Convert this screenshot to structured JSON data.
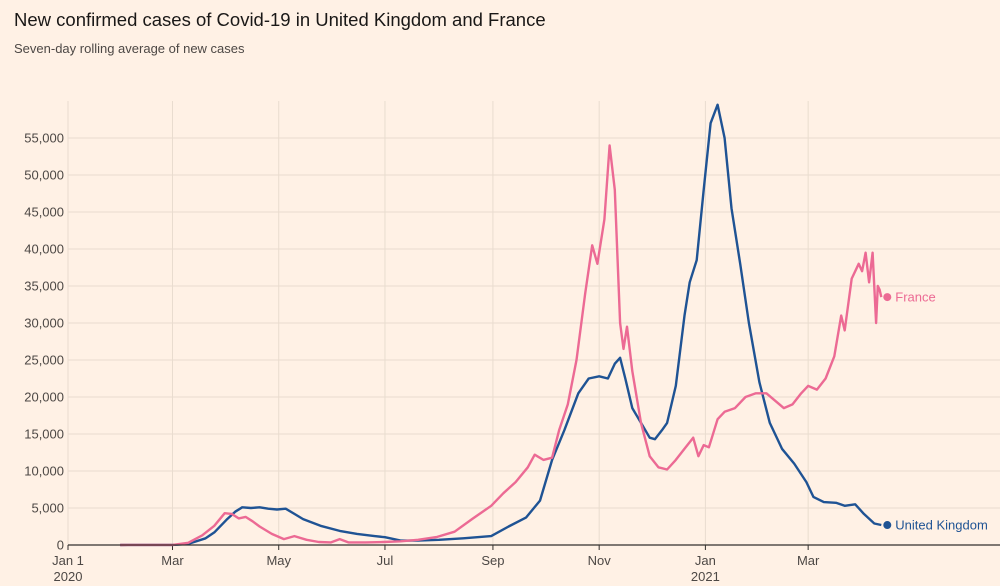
{
  "title": "New confirmed cases of Covid-19 in United Kingdom and France",
  "subtitle": "Seven-day rolling average of new cases",
  "colors": {
    "background": "#fff1e5",
    "grid": "#e9dccf",
    "axis": "#33302e",
    "uk": "#1f5394",
    "france": "#ec6a94"
  },
  "chart_data": {
    "type": "line",
    "x_unit": "date",
    "y_ticks": [
      0,
      5000,
      10000,
      15000,
      20000,
      25000,
      30000,
      35000,
      40000,
      45000,
      50000,
      55000
    ],
    "y_tick_labels": [
      "0",
      "5,000",
      "10,000",
      "15,000",
      "20,000",
      "25,000",
      "30,000",
      "35,000",
      "40,000",
      "45,000",
      "50,000",
      "55,000"
    ],
    "ylim": [
      0,
      60000
    ],
    "xlim": [
      "2020-01-01",
      "2021-04-17"
    ],
    "x_ticks": [
      {
        "date": "2020-01-01",
        "label": "Jan 1",
        "sublabel": "2020"
      },
      {
        "date": "2020-03-01",
        "label": "Mar",
        "sublabel": ""
      },
      {
        "date": "2020-05-01",
        "label": "May",
        "sublabel": ""
      },
      {
        "date": "2020-07-01",
        "label": "Jul",
        "sublabel": ""
      },
      {
        "date": "2020-09-01",
        "label": "Sep",
        "sublabel": ""
      },
      {
        "date": "2020-11-01",
        "label": "Nov",
        "sublabel": ""
      },
      {
        "date": "2021-01-01",
        "label": "Jan",
        "sublabel": "2021"
      },
      {
        "date": "2021-03-01",
        "label": "Mar",
        "sublabel": ""
      }
    ],
    "grid": true,
    "series": [
      {
        "name": "United Kingdom",
        "points": [
          [
            "2020-01-31",
            0
          ],
          [
            "2020-03-01",
            10
          ],
          [
            "2020-03-10",
            150
          ],
          [
            "2020-03-20",
            900
          ],
          [
            "2020-03-25",
            1700
          ],
          [
            "2020-04-01",
            3400
          ],
          [
            "2020-04-06",
            4500
          ],
          [
            "2020-04-10",
            5100
          ],
          [
            "2020-04-15",
            5000
          ],
          [
            "2020-04-20",
            5100
          ],
          [
            "2020-04-25",
            4900
          ],
          [
            "2020-04-30",
            4800
          ],
          [
            "2020-05-05",
            4900
          ],
          [
            "2020-05-10",
            4200
          ],
          [
            "2020-05-15",
            3500
          ],
          [
            "2020-05-25",
            2600
          ],
          [
            "2020-06-05",
            1900
          ],
          [
            "2020-06-15",
            1500
          ],
          [
            "2020-06-25",
            1200
          ],
          [
            "2020-07-01",
            1050
          ],
          [
            "2020-07-10",
            600
          ],
          [
            "2020-07-20",
            600
          ],
          [
            "2020-08-01",
            700
          ],
          [
            "2020-08-15",
            900
          ],
          [
            "2020-08-31",
            1200
          ],
          [
            "2020-09-10",
            2500
          ],
          [
            "2020-09-20",
            3700
          ],
          [
            "2020-09-28",
            6000
          ],
          [
            "2020-10-05",
            11500
          ],
          [
            "2020-10-12",
            15500
          ],
          [
            "2020-10-20",
            20500
          ],
          [
            "2020-10-26",
            22500
          ],
          [
            "2020-11-01",
            22800
          ],
          [
            "2020-11-06",
            22500
          ],
          [
            "2020-11-10",
            24500
          ],
          [
            "2020-11-13",
            25300
          ],
          [
            "2020-11-16",
            22500
          ],
          [
            "2020-11-20",
            18500
          ],
          [
            "2020-11-25",
            16500
          ],
          [
            "2020-11-30",
            14500
          ],
          [
            "2020-12-03",
            14300
          ],
          [
            "2020-12-07",
            15500
          ],
          [
            "2020-12-10",
            16500
          ],
          [
            "2020-12-15",
            21500
          ],
          [
            "2020-12-20",
            31000
          ],
          [
            "2020-12-23",
            35500
          ],
          [
            "2020-12-27",
            38500
          ],
          [
            "2020-12-31",
            48000
          ],
          [
            "2021-01-04",
            57000
          ],
          [
            "2021-01-08",
            59500
          ],
          [
            "2021-01-12",
            55000
          ],
          [
            "2021-01-16",
            45500
          ],
          [
            "2021-01-21",
            38000
          ],
          [
            "2021-01-26",
            30000
          ],
          [
            "2021-02-01",
            22000
          ],
          [
            "2021-02-07",
            16500
          ],
          [
            "2021-02-14",
            13000
          ],
          [
            "2021-02-21",
            11000
          ],
          [
            "2021-02-28",
            8500
          ],
          [
            "2021-03-04",
            6500
          ],
          [
            "2021-03-10",
            5800
          ],
          [
            "2021-03-17",
            5700
          ],
          [
            "2021-03-22",
            5300
          ],
          [
            "2021-03-28",
            5500
          ],
          [
            "2021-04-02",
            4200
          ],
          [
            "2021-04-08",
            2900
          ],
          [
            "2021-04-12",
            2700
          ]
        ]
      },
      {
        "name": "France",
        "points": [
          [
            "2020-01-31",
            0
          ],
          [
            "2020-03-01",
            10
          ],
          [
            "2020-03-10",
            300
          ],
          [
            "2020-03-18",
            1300
          ],
          [
            "2020-03-25",
            2600
          ],
          [
            "2020-03-31",
            4300
          ],
          [
            "2020-04-04",
            4200
          ],
          [
            "2020-04-08",
            3600
          ],
          [
            "2020-04-12",
            3800
          ],
          [
            "2020-04-16",
            3200
          ],
          [
            "2020-04-20",
            2500
          ],
          [
            "2020-04-27",
            1500
          ],
          [
            "2020-05-04",
            800
          ],
          [
            "2020-05-10",
            1200
          ],
          [
            "2020-05-17",
            700
          ],
          [
            "2020-05-24",
            400
          ],
          [
            "2020-05-31",
            350
          ],
          [
            "2020-06-05",
            800
          ],
          [
            "2020-06-10",
            350
          ],
          [
            "2020-06-20",
            350
          ],
          [
            "2020-06-30",
            400
          ],
          [
            "2020-07-10",
            500
          ],
          [
            "2020-07-20",
            700
          ],
          [
            "2020-07-31",
            1100
          ],
          [
            "2020-08-10",
            1800
          ],
          [
            "2020-08-20",
            3500
          ],
          [
            "2020-08-31",
            5300
          ],
          [
            "2020-09-07",
            7000
          ],
          [
            "2020-09-14",
            8500
          ],
          [
            "2020-09-21",
            10500
          ],
          [
            "2020-09-25",
            12200
          ],
          [
            "2020-09-30",
            11500
          ],
          [
            "2020-10-05",
            11800
          ],
          [
            "2020-10-09",
            15500
          ],
          [
            "2020-10-14",
            19000
          ],
          [
            "2020-10-19",
            25000
          ],
          [
            "2020-10-24",
            34000
          ],
          [
            "2020-10-28",
            40500
          ],
          [
            "2020-10-31",
            38000
          ],
          [
            "2020-11-04",
            44000
          ],
          [
            "2020-11-07",
            54000
          ],
          [
            "2020-11-10",
            48000
          ],
          [
            "2020-11-13",
            30000
          ],
          [
            "2020-11-15",
            26500
          ],
          [
            "2020-11-17",
            29500
          ],
          [
            "2020-11-20",
            23500
          ],
          [
            "2020-11-25",
            16500
          ],
          [
            "2020-11-30",
            12000
          ],
          [
            "2020-12-05",
            10500
          ],
          [
            "2020-12-10",
            10200
          ],
          [
            "2020-12-15",
            11500
          ],
          [
            "2020-12-20",
            13000
          ],
          [
            "2020-12-25",
            14500
          ],
          [
            "2020-12-28",
            12000
          ],
          [
            "2020-12-31",
            13500
          ],
          [
            "2021-01-03",
            13200
          ],
          [
            "2021-01-08",
            17000
          ],
          [
            "2021-01-12",
            18000
          ],
          [
            "2021-01-18",
            18500
          ],
          [
            "2021-01-24",
            20000
          ],
          [
            "2021-01-30",
            20500
          ],
          [
            "2021-02-05",
            20500
          ],
          [
            "2021-02-10",
            19500
          ],
          [
            "2021-02-15",
            18500
          ],
          [
            "2021-02-20",
            19000
          ],
          [
            "2021-02-25",
            20500
          ],
          [
            "2021-03-01",
            21500
          ],
          [
            "2021-03-06",
            21000
          ],
          [
            "2021-03-11",
            22500
          ],
          [
            "2021-03-16",
            25500
          ],
          [
            "2021-03-20",
            31000
          ],
          [
            "2021-03-22",
            29000
          ],
          [
            "2021-03-26",
            36000
          ],
          [
            "2021-03-30",
            38000
          ],
          [
            "2021-04-01",
            37000
          ],
          [
            "2021-04-03",
            39500
          ],
          [
            "2021-04-05",
            35500
          ],
          [
            "2021-04-07",
            39500
          ],
          [
            "2021-04-09",
            30000
          ],
          [
            "2021-04-10",
            35000
          ],
          [
            "2021-04-11",
            34500
          ],
          [
            "2021-04-12",
            33500
          ]
        ]
      }
    ]
  }
}
